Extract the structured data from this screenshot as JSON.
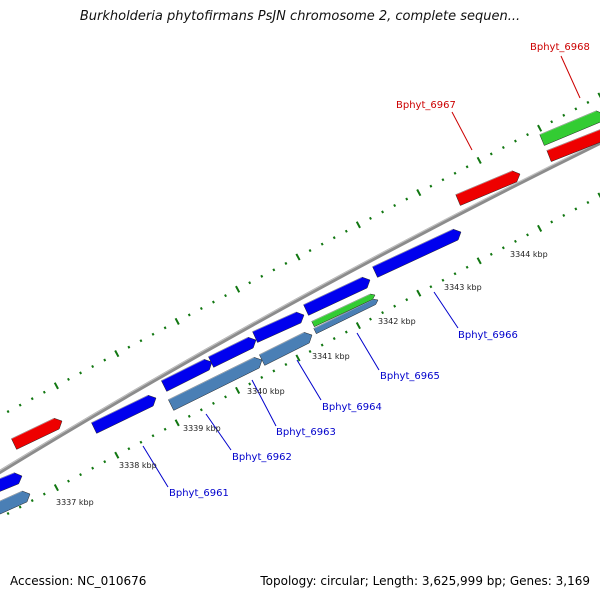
{
  "title": "Burkholderia phytofirmans PsJN chromosome 2, complete sequen...",
  "footer": {
    "accession": "Accession: NC_010676",
    "stats": "Topology: circular; Length: 3,625,999 bp; Genes: 3,169"
  },
  "colors": {
    "background": "#ffffff",
    "backbone": "#888888",
    "forward_gene": "#0000ee",
    "reverse_gene_light": "#4a7fb5",
    "rna_green": "#33cc33",
    "red_feature": "#ee0000",
    "tick_green": "#117711",
    "label_blue": "#0000cc",
    "label_red": "#cc0000"
  },
  "scale_labels": [
    "3337 kbp",
    "3338 kbp",
    "3339 kbp",
    "3340 kbp",
    "3341 kbp",
    "3342 kbp",
    "3343 kbp",
    "3344 kbp"
  ],
  "gene_labels": [
    {
      "text": "Bphyt_6961",
      "color": "blue"
    },
    {
      "text": "Bphyt_6962",
      "color": "blue"
    },
    {
      "text": "Bphyt_6963",
      "color": "blue"
    },
    {
      "text": "Bphyt_6964",
      "color": "blue"
    },
    {
      "text": "Bphyt_6965",
      "color": "blue"
    },
    {
      "text": "Bphyt_6966",
      "color": "blue"
    },
    {
      "text": "Bphyt_6967",
      "color": "red"
    },
    {
      "text": "Bphyt_6968",
      "color": "red"
    }
  ]
}
